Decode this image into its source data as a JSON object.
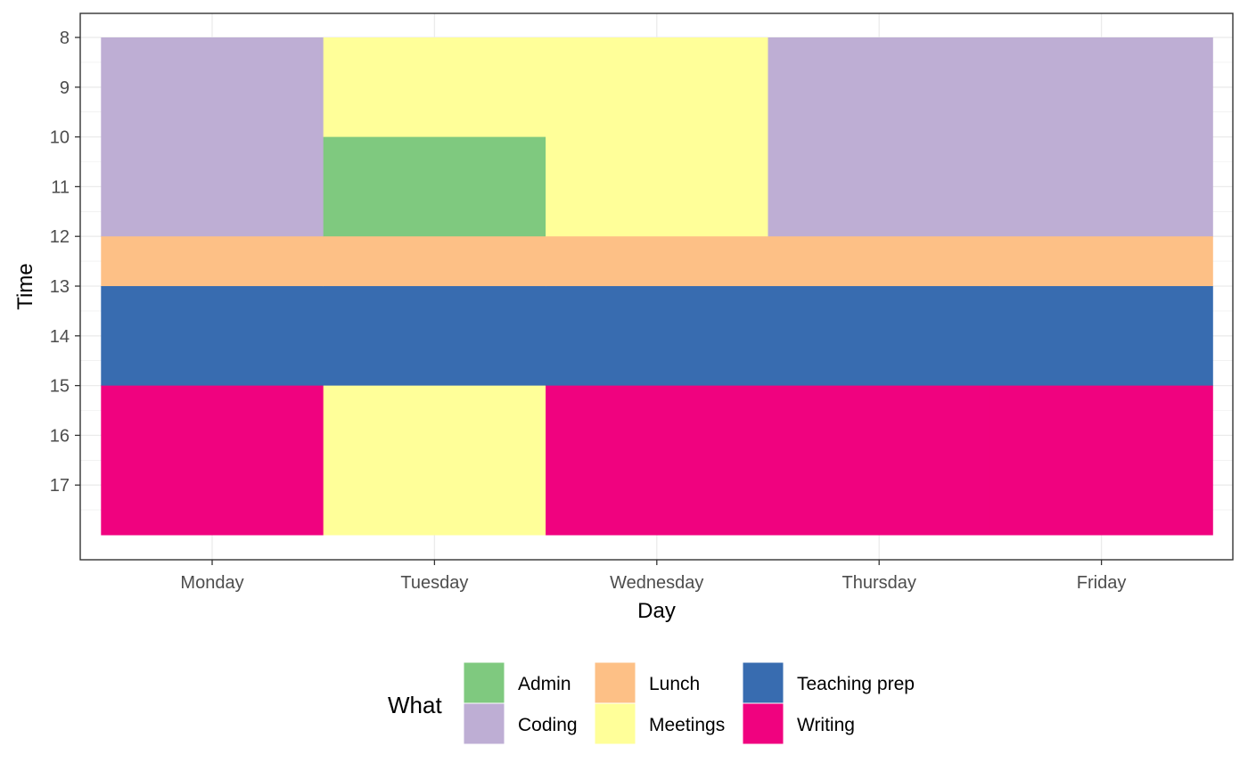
{
  "chart_data": {
    "type": "heatmap",
    "xlabel": "Day",
    "ylabel": "Time",
    "x_categories": [
      "Monday",
      "Tuesday",
      "Wednesday",
      "Thursday",
      "Friday"
    ],
    "y_ticks": [
      8,
      9,
      10,
      11,
      12,
      13,
      14,
      15,
      16,
      17
    ],
    "ylim": [
      8,
      18
    ],
    "y_reversed": true,
    "grid": true,
    "legend_position": "bottom",
    "legend": {
      "title": "What",
      "items": [
        {
          "name": "Admin",
          "color": "#7FC97F"
        },
        {
          "name": "Coding",
          "color": "#BEAED4"
        },
        {
          "name": "Lunch",
          "color": "#FDC086"
        },
        {
          "name": "Meetings",
          "color": "#FFFF99"
        },
        {
          "name": "Teaching prep",
          "color": "#386CB0"
        },
        {
          "name": "Writing",
          "color": "#F0027F"
        }
      ]
    },
    "blocks": [
      {
        "day": "Monday",
        "start": 8,
        "end": 12,
        "what": "Coding"
      },
      {
        "day": "Monday",
        "start": 12,
        "end": 13,
        "what": "Lunch"
      },
      {
        "day": "Monday",
        "start": 13,
        "end": 15,
        "what": "Teaching prep"
      },
      {
        "day": "Monday",
        "start": 15,
        "end": 18,
        "what": "Writing"
      },
      {
        "day": "Tuesday",
        "start": 8,
        "end": 10,
        "what": "Meetings"
      },
      {
        "day": "Tuesday",
        "start": 10,
        "end": 12,
        "what": "Admin"
      },
      {
        "day": "Tuesday",
        "start": 12,
        "end": 13,
        "what": "Lunch"
      },
      {
        "day": "Tuesday",
        "start": 13,
        "end": 15,
        "what": "Teaching prep"
      },
      {
        "day": "Tuesday",
        "start": 15,
        "end": 18,
        "what": "Meetings"
      },
      {
        "day": "Wednesday",
        "start": 8,
        "end": 12,
        "what": "Meetings"
      },
      {
        "day": "Wednesday",
        "start": 12,
        "end": 13,
        "what": "Lunch"
      },
      {
        "day": "Wednesday",
        "start": 13,
        "end": 15,
        "what": "Teaching prep"
      },
      {
        "day": "Wednesday",
        "start": 15,
        "end": 18,
        "what": "Writing"
      },
      {
        "day": "Thursday",
        "start": 8,
        "end": 12,
        "what": "Coding"
      },
      {
        "day": "Thursday",
        "start": 12,
        "end": 13,
        "what": "Lunch"
      },
      {
        "day": "Thursday",
        "start": 13,
        "end": 15,
        "what": "Teaching prep"
      },
      {
        "day": "Thursday",
        "start": 15,
        "end": 18,
        "what": "Writing"
      },
      {
        "day": "Friday",
        "start": 8,
        "end": 12,
        "what": "Coding"
      },
      {
        "day": "Friday",
        "start": 12,
        "end": 13,
        "what": "Lunch"
      },
      {
        "day": "Friday",
        "start": 13,
        "end": 15,
        "what": "Teaching prep"
      },
      {
        "day": "Friday",
        "start": 15,
        "end": 18,
        "what": "Writing"
      }
    ]
  }
}
